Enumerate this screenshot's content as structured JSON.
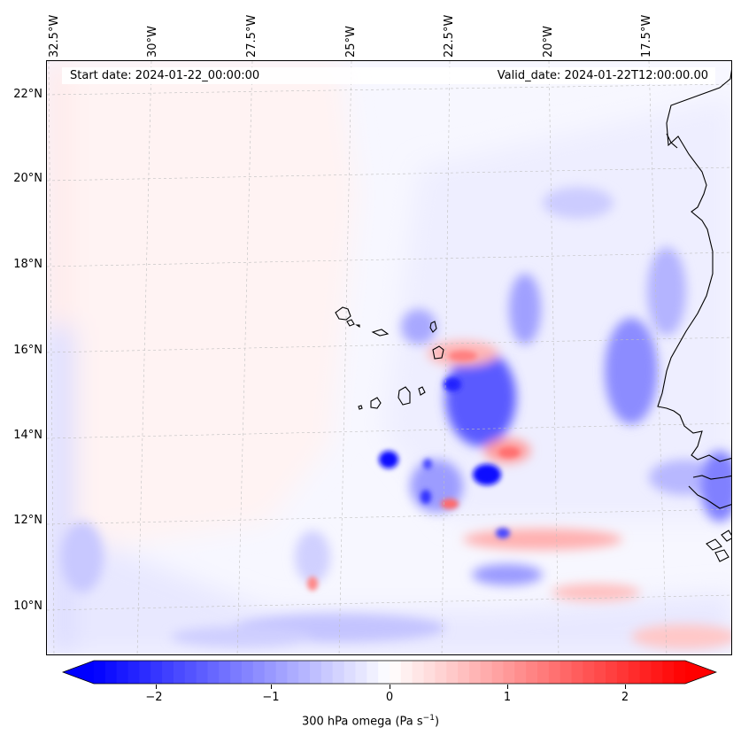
{
  "map": {
    "start_date": "Start date: 2024-01-22_00:00:00",
    "valid_date": "Valid_date: 2024-01-22T12:00:00.00",
    "lat_labels": [
      "22°N",
      "20°N",
      "18°N",
      "16°N",
      "14°N",
      "12°N",
      "10°N"
    ],
    "lon_labels": [
      "32.5°W",
      "30°W",
      "27.5°W",
      "25°W",
      "22.5°W",
      "20°W",
      "17.5°W"
    ],
    "coastline_color": "#000000",
    "gridline_color": "#bfbfbf"
  },
  "colorbar": {
    "ticks": [
      "−2",
      "−1",
      "0",
      "1",
      "2"
    ],
    "min": -2.6,
    "max": 2.6,
    "colormap": "bwr",
    "low_color": "#0000ff",
    "mid_color": "#ffffff",
    "high_color": "#ff0000",
    "label_main": "300 hPa omega (Pa s",
    "label_exp": "−1",
    "label_close": ")"
  }
}
